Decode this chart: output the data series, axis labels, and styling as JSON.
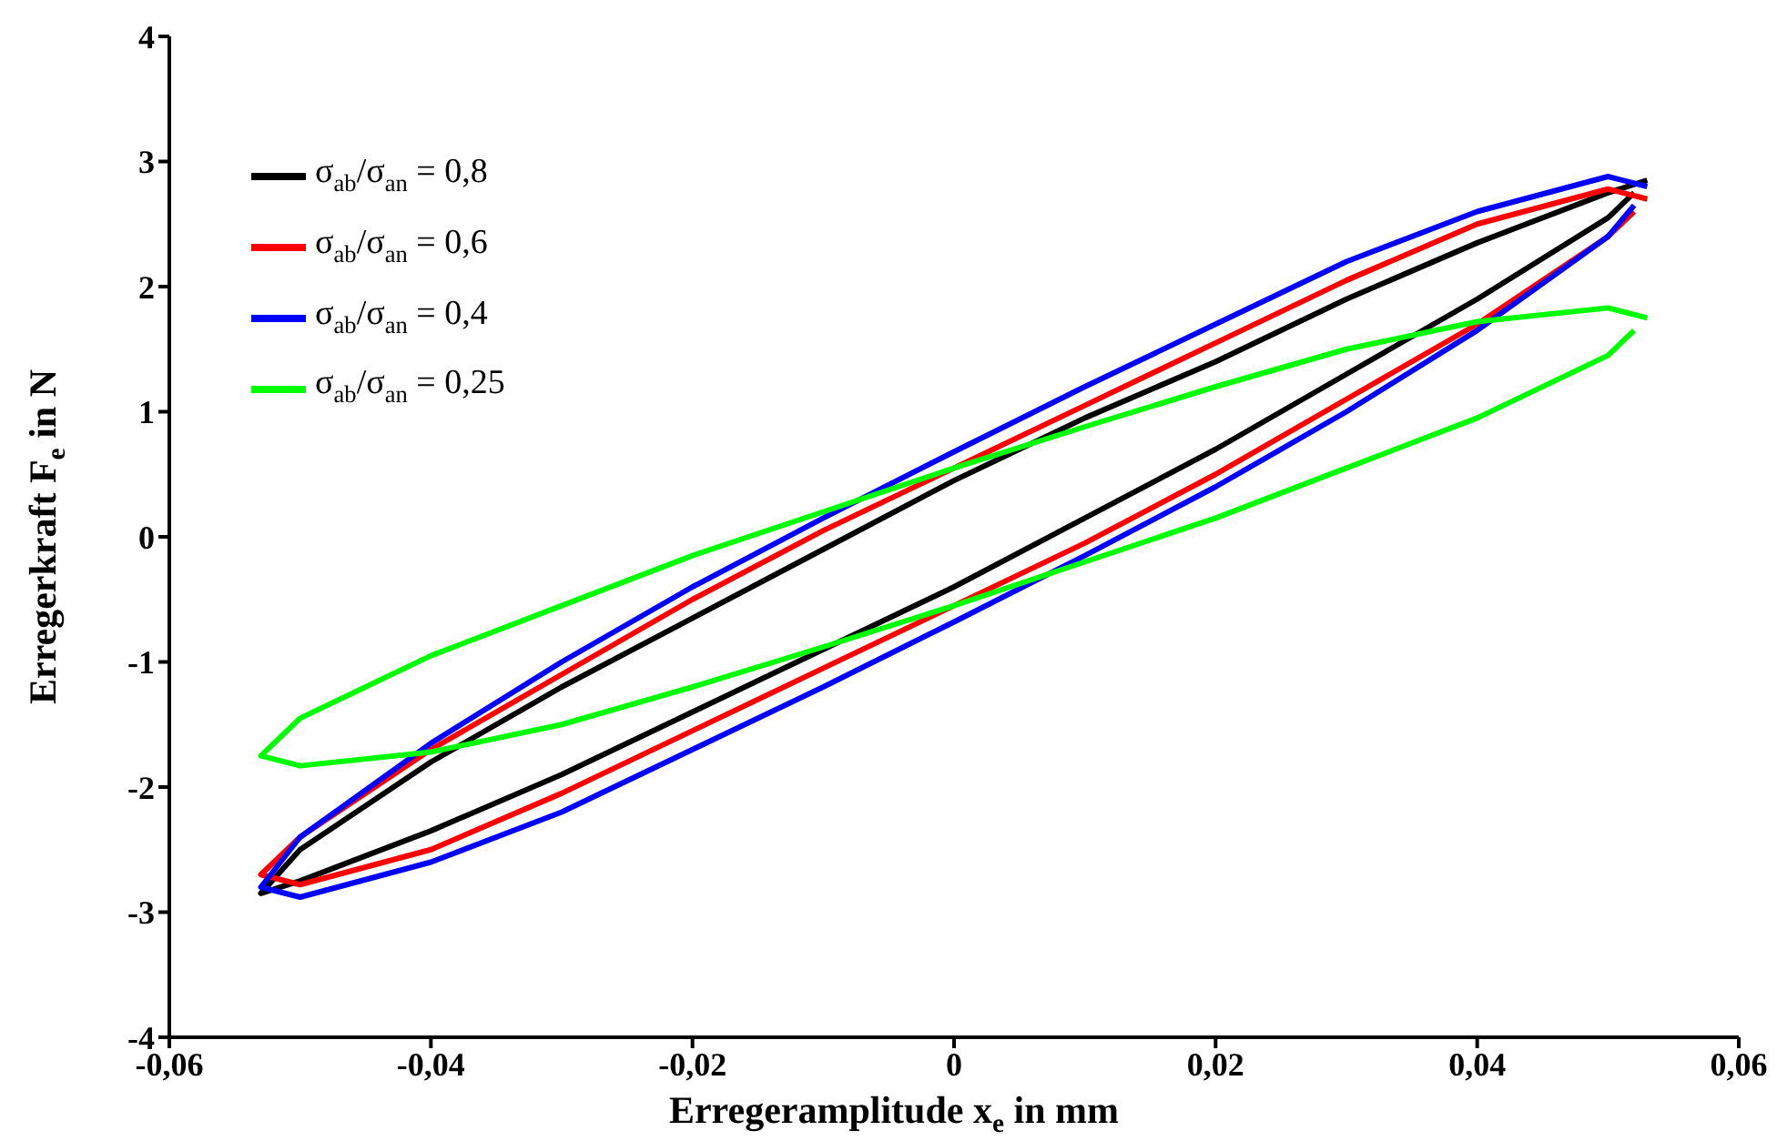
{
  "chart_data": {
    "type": "line",
    "xlabel": "Erregeramplitude x$_{e}$ in mm",
    "ylabel": "Erregerkraft F$_{e}$ in N",
    "xlim": [
      -0.06,
      0.06
    ],
    "xticks": [
      {
        "value": -0.06,
        "label": "-0,06"
      },
      {
        "value": -0.04,
        "label": "-0,04"
      },
      {
        "value": -0.02,
        "label": "-0,02"
      },
      {
        "value": 0,
        "label": "0"
      },
      {
        "value": 0.02,
        "label": "0,02"
      },
      {
        "value": 0.04,
        "label": "0,04"
      },
      {
        "value": 0.06,
        "label": "0,06"
      }
    ],
    "ylim": [
      -4,
      4
    ],
    "yticks": [
      -4,
      -3,
      -2,
      -1,
      0,
      1,
      2,
      3,
      4
    ],
    "legend": "top left",
    "line_style": "solid",
    "x": [
      0.053,
      0.05,
      0.04,
      0.03,
      0.02,
      0.01,
      0,
      -0.01,
      -0.02,
      -0.03,
      -0.04,
      -0.05,
      -0.053,
      -0.05,
      -0.04,
      -0.03,
      -0.02,
      -0.01,
      0,
      0.01,
      0.02,
      0.03,
      0.04,
      0.05,
      0.052
    ],
    "series": [
      {
        "name": "σ$_{ab}$/σ$_{an}$ = 0,8",
        "color": "#000000",
        "values": [
          2.85,
          2.75,
          2.35,
          1.9,
          1.4,
          0.95,
          0.45,
          -0.1,
          -0.65,
          -1.2,
          -1.8,
          -2.5,
          -2.85,
          -2.75,
          -2.35,
          -1.9,
          -1.4,
          -0.9,
          -0.4,
          0.15,
          0.7,
          1.3,
          1.9,
          2.55,
          2.75
        ]
      },
      {
        "name": "σ$_{ab}$/σ$_{an}$ = 0,6",
        "color": "#ff0000",
        "values": [
          2.7,
          2.78,
          2.5,
          2.05,
          1.55,
          1.05,
          0.55,
          0.05,
          -0.5,
          -1.1,
          -1.7,
          -2.4,
          -2.7,
          -2.78,
          -2.5,
          -2.05,
          -1.55,
          -1.05,
          -0.55,
          -0.05,
          0.5,
          1.1,
          1.7,
          2.4,
          2.6
        ]
      },
      {
        "name": "σ$_{ab}$/σ$_{an}$ = 0,4",
        "color": "#0000ff",
        "values": [
          2.8,
          2.88,
          2.6,
          2.2,
          1.7,
          1.2,
          0.68,
          0.15,
          -0.4,
          -1.0,
          -1.65,
          -2.4,
          -2.8,
          -2.88,
          -2.6,
          -2.2,
          -1.7,
          -1.2,
          -0.68,
          -0.15,
          0.4,
          1.0,
          1.65,
          2.4,
          2.65
        ]
      },
      {
        "name": "σ$_{ab}$/σ$_{an}$ = 0,25",
        "color": "#00ff00",
        "values": [
          1.75,
          1.83,
          1.72,
          1.5,
          1.2,
          0.88,
          0.55,
          0.2,
          -0.15,
          -0.55,
          -0.95,
          -1.45,
          -1.75,
          -1.83,
          -1.72,
          -1.5,
          -1.2,
          -0.88,
          -0.55,
          -0.2,
          0.15,
          0.55,
          0.95,
          1.45,
          1.65
        ]
      }
    ]
  }
}
